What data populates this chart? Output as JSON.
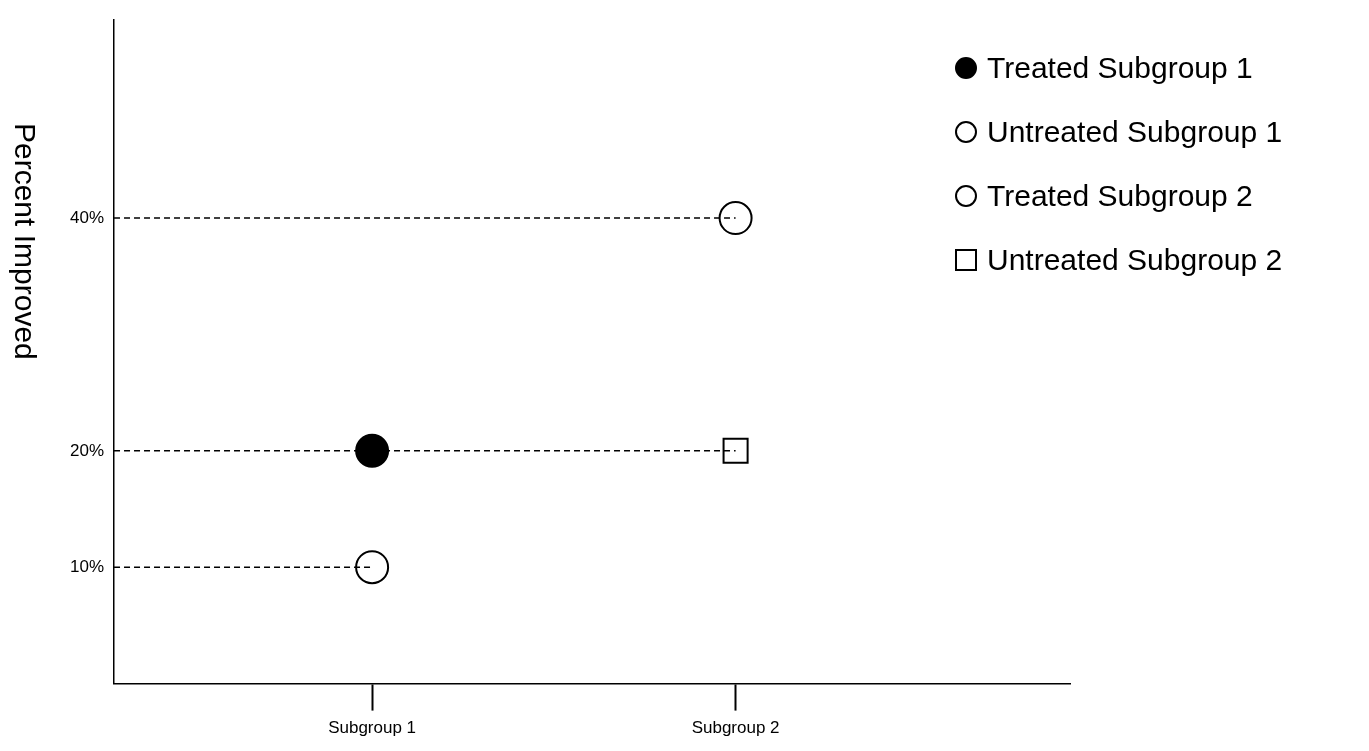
{
  "chart_data": {
    "type": "scatter",
    "ylabel": "Percent Improved",
    "categories": [
      "Subgroup 1",
      "Subgroup 2"
    ],
    "series": [
      {
        "name": "Treated Subgroup 1",
        "color": "#000000",
        "marker": "circle",
        "values": [
          20,
          null
        ]
      },
      {
        "name": "Untreated Subgroup 1",
        "color": "#000000",
        "marker": "circle",
        "values": [
          10,
          null
        ]
      },
      {
        "name": "Treated Subgroup 2",
        "color": "#000000",
        "marker": "circle",
        "values": [
          null,
          40
        ]
      },
      {
        "name": "Untreated Subgroup 2",
        "color": "#000000",
        "marker": "square",
        "values": [
          null,
          20
        ]
      }
    ],
    "ylim": [
      0,
      57
    ],
    "yticks": [
      {
        "value": 10,
        "label": "10%"
      },
      {
        "value": 20,
        "label": "20%"
      },
      {
        "value": 40,
        "label": "40%"
      }
    ],
    "ref_lines": [
      {
        "axis": "y",
        "value": 40,
        "line_style": "dashed"
      },
      {
        "axis": "y",
        "value": 20,
        "line_style": "dashed"
      },
      {
        "axis": "y",
        "value": 10,
        "line_style": "dashed"
      }
    ],
    "grid": false,
    "legend": "top right"
  }
}
